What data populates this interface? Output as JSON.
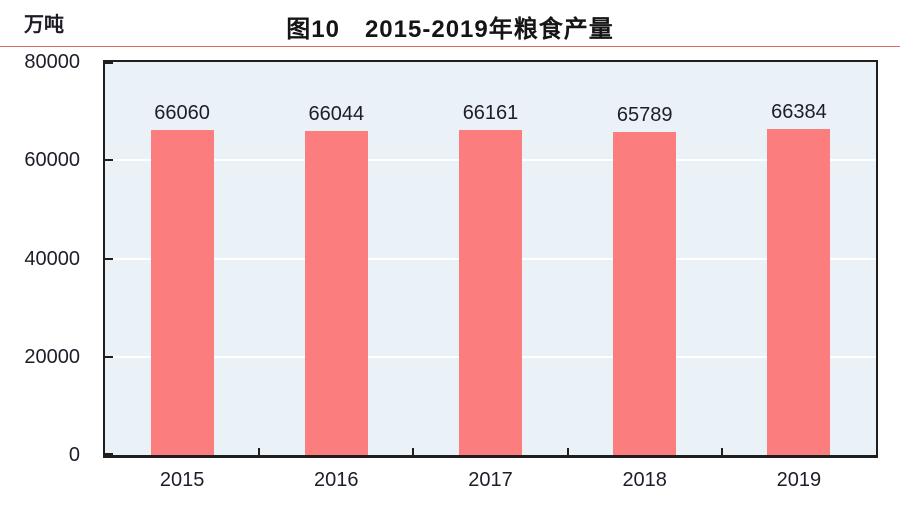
{
  "chart_data": {
    "type": "bar",
    "title": "图10　2015-2019年粮食产量",
    "unit_label": "万吨",
    "categories": [
      "2015",
      "2016",
      "2017",
      "2018",
      "2019"
    ],
    "values": [
      66060,
      66044,
      66161,
      65789,
      66384
    ],
    "value_labels": [
      "66060",
      "66044",
      "66161",
      "65789",
      "66384"
    ],
    "ylabel": "万吨",
    "xlabel": "",
    "ylim": [
      0,
      80000
    ],
    "yticks": [
      0,
      20000,
      40000,
      60000,
      80000
    ],
    "ytick_labels": [
      "0",
      "20000",
      "40000",
      "60000",
      "80000"
    ],
    "grid": "horizontal gridlines, white, behind bars",
    "legend": "none",
    "colors": {
      "bar": "#FC7D7D",
      "plot_background": "#EBF2F7",
      "axis_frame": "#1F1F1F",
      "gridline": "#FFFFFF",
      "title_rule": "#D96C63",
      "text": "#1E1E2A"
    }
  }
}
